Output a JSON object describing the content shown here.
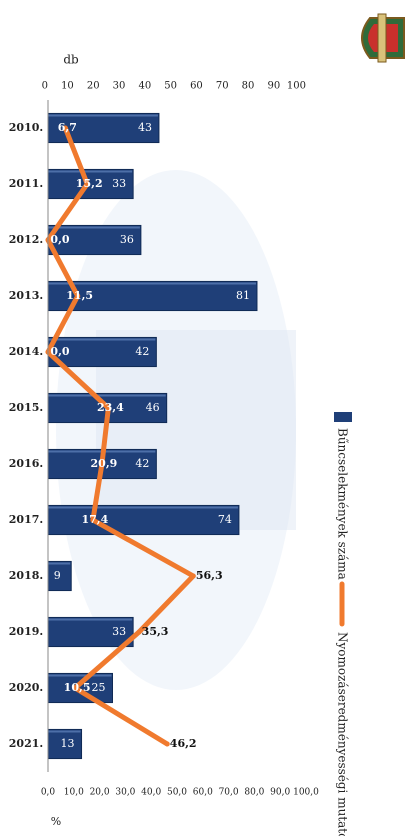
{
  "chart_data": {
    "type": "bar",
    "title": "",
    "categories": [
      "2010.",
      "2011.",
      "2012.",
      "2013.",
      "2014.",
      "2015.",
      "2016.",
      "2017.",
      "2018.",
      "2019.",
      "2020.",
      "2021."
    ],
    "left_axis": {
      "unit": "db",
      "ylim": [
        0,
        100
      ],
      "ticks": [
        "0",
        "10",
        "20",
        "30",
        "40",
        "50",
        "60",
        "70",
        "80",
        "90",
        "100"
      ]
    },
    "right_axis": {
      "unit": "%",
      "ylim": [
        0,
        100
      ],
      "ticks": [
        "0,0",
        "10,0",
        "20,0",
        "30,0",
        "40,0",
        "50,0",
        "60,0",
        "70,0",
        "80,0",
        "90,0",
        "100,0"
      ]
    },
    "legend_position": "top",
    "series": [
      {
        "name": "Bűncselekmények száma",
        "type": "bar",
        "axis": "left",
        "color": "#1f3f78",
        "values": [
          43,
          33,
          36,
          81,
          42,
          46,
          42,
          74,
          9,
          33,
          25,
          13
        ],
        "labels": [
          "43",
          "33",
          "36",
          "81",
          "42",
          "46",
          "42",
          "74",
          "9",
          "33",
          "25",
          "13"
        ]
      },
      {
        "name": "Nyomozáseredményességi mutató (%)",
        "type": "line",
        "axis": "right",
        "color": "#f07a2e",
        "values": [
          6.7,
          15.2,
          0.0,
          11.5,
          0.0,
          23.4,
          20.9,
          17.4,
          56.3,
          35.3,
          10.5,
          46.2
        ],
        "labels": [
          "6,7",
          "15,2",
          "0,0",
          "11,5",
          "0,0",
          "23,4",
          "20,9",
          "17,4",
          "56,3",
          "35,3",
          "10,5",
          "46,2"
        ]
      }
    ]
  }
}
